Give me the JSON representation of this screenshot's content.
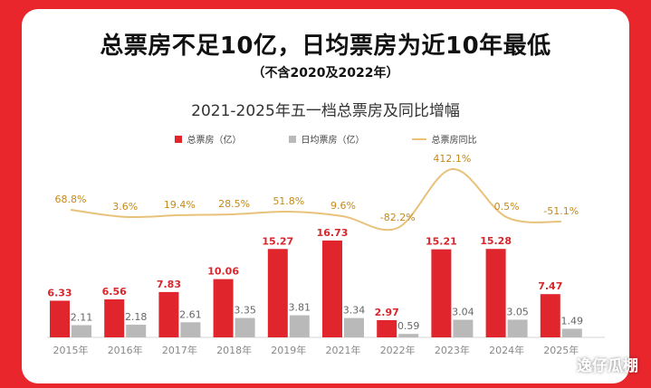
{
  "headline": "总票房不足10亿，日均票房为近10年最低",
  "subhead": "（不含2020及2022年）",
  "watermark": "逸仔瓜棚",
  "colors": {
    "background": "#e8262c",
    "total_bar": "#e0262c",
    "daily_bar": "#b9b9b9",
    "yoy_line": "#e8c27a",
    "total_label": "#d8262c",
    "daily_label": "#666666",
    "yoy_label": "#c58a1a"
  },
  "chart_data": {
    "type": "bar",
    "title": "2021-2025年五一档总票房及同比增幅",
    "categories": [
      "2015年",
      "2016年",
      "2017年",
      "2018年",
      "2019年",
      "2021年",
      "2022年",
      "2023年",
      "2024年",
      "2025年"
    ],
    "series": [
      {
        "name": "总票房（亿）",
        "type": "bar",
        "values": [
          6.33,
          6.56,
          7.83,
          10.06,
          15.27,
          16.73,
          2.97,
          15.21,
          15.28,
          7.47
        ]
      },
      {
        "name": "日均票房（亿）",
        "type": "bar",
        "values": [
          2.11,
          2.18,
          2.61,
          3.35,
          3.81,
          3.34,
          0.59,
          3.04,
          3.05,
          1.49
        ]
      },
      {
        "name": "总票房同比",
        "type": "line",
        "values": [
          "68.8%",
          "3.6%",
          "19.4%",
          "28.5%",
          "51.8%",
          "9.6%",
          "-82.2%",
          "412.1%",
          "0.5%",
          "-51.1%"
        ]
      }
    ],
    "legend_position": "top-center",
    "grid": false
  }
}
